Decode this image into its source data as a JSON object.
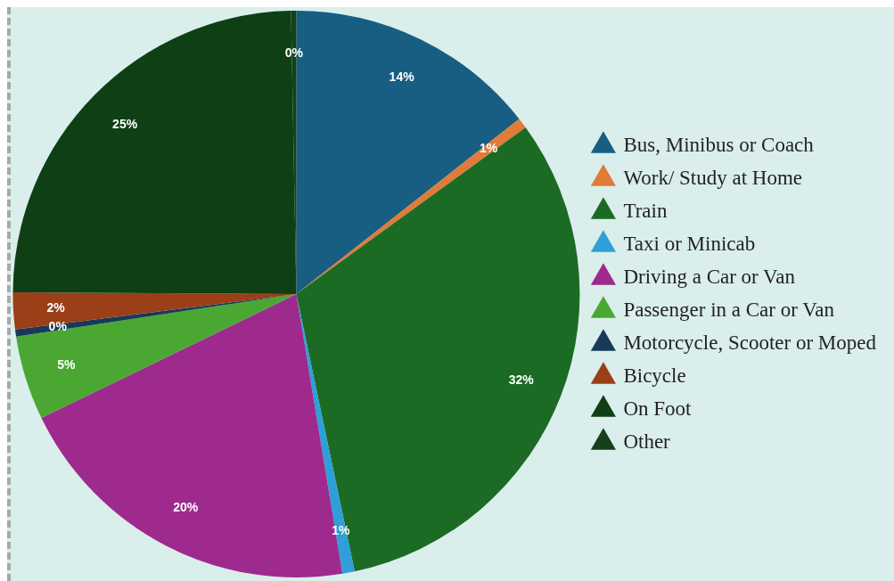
{
  "chart_data": {
    "type": "pie",
    "categories": [
      "Bus, Minibus or Coach",
      "Work/ Study at Home",
      "Train",
      "Taxi or Minicab",
      "Driving a Car or Van",
      "Passenger in a Car or Van",
      "Motorcycle, Scooter or Moped",
      "Bicycle",
      "On Foot",
      "Other"
    ],
    "values": [
      14.4,
      0.6,
      31.7,
      0.7,
      20.4,
      4.8,
      0.4,
      2.1,
      24.6,
      0.3
    ],
    "value_labels": [
      "14%",
      "1%",
      "32%",
      "1%",
      "20%",
      "5%",
      "0%",
      "2%",
      "25%",
      "0%"
    ],
    "colors": [
      "#175e82",
      "#e07b39",
      "#1b6b24",
      "#2e9fd8",
      "#9e2a8e",
      "#4aa832",
      "#183a5a",
      "#9a3f17",
      "#0f3f14",
      "#16401c"
    ],
    "legend": "right"
  }
}
